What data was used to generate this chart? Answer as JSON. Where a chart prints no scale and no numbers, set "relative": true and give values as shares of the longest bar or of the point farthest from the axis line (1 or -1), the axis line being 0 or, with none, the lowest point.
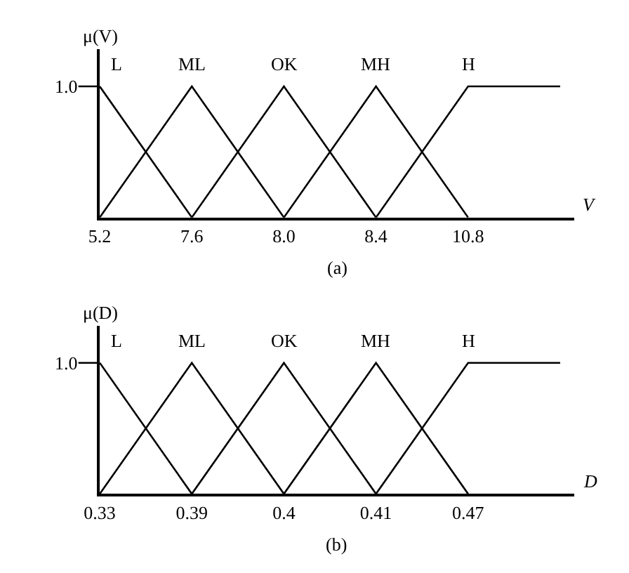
{
  "chart_data": [
    {
      "type": "line",
      "title": "(a)",
      "xlabel": "V",
      "ylabel": "μ(V)",
      "relative": true,
      "marker": "none",
      "line_style": "solid",
      "categories": [
        "5.2",
        "7.6",
        "8.0",
        "8.4",
        "10.8",
        null
      ],
      "annotations": [
        "1.0"
      ],
      "series": [
        {
          "name": "L",
          "color": "#000000",
          "values": [
            1,
            0,
            null,
            null,
            null,
            null
          ]
        },
        {
          "name": "ML",
          "color": "#000000",
          "values": [
            0,
            1,
            0,
            null,
            null,
            null
          ]
        },
        {
          "name": "OK",
          "color": "#000000",
          "values": [
            null,
            0,
            1,
            0,
            null,
            null
          ]
        },
        {
          "name": "MH",
          "color": "#000000",
          "values": [
            null,
            null,
            0,
            1,
            0,
            null
          ]
        },
        {
          "name": "H",
          "color": "#000000",
          "values": [
            null,
            null,
            null,
            0,
            1,
            1
          ]
        }
      ]
    },
    {
      "type": "line",
      "title": "(b)",
      "xlabel": "D",
      "ylabel": "μ(D)",
      "relative": true,
      "marker": "none",
      "line_style": "solid",
      "categories": [
        "0.33",
        "0.39",
        "0.4",
        "0.41",
        "0.47",
        null
      ],
      "annotations": [
        "1.0"
      ],
      "series": [
        {
          "name": "L",
          "color": "#000000",
          "values": [
            1,
            0,
            null,
            null,
            null,
            null
          ]
        },
        {
          "name": "ML",
          "color": "#000000",
          "values": [
            0,
            1,
            0,
            null,
            null,
            null
          ]
        },
        {
          "name": "OK",
          "color": "#000000",
          "values": [
            null,
            0,
            1,
            0,
            null,
            null
          ]
        },
        {
          "name": "MH",
          "color": "#000000",
          "values": [
            null,
            null,
            0,
            1,
            0,
            null
          ]
        },
        {
          "name": "H",
          "color": "#000000",
          "values": [
            null,
            null,
            null,
            0,
            1,
            1
          ]
        }
      ]
    }
  ]
}
